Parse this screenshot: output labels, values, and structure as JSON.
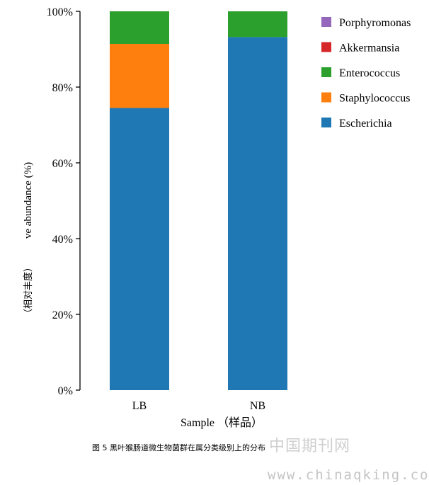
{
  "chart_data": {
    "type": "bar",
    "stacked": true,
    "categories": [
      "LB",
      "NB"
    ],
    "series": [
      {
        "name": "Escherichia",
        "color": "#1f77b4",
        "values": [
          74.5,
          93.2
        ]
      },
      {
        "name": "Staphylococcus",
        "color": "#ff7f0e",
        "values": [
          16.9,
          0.0
        ]
      },
      {
        "name": "Enterococcus",
        "color": "#2ca02c",
        "values": [
          8.6,
          6.8
        ]
      },
      {
        "name": "Akkermansia",
        "color": "#d62728",
        "values": [
          0.0,
          0.0
        ]
      },
      {
        "name": "Porphyromonas",
        "color": "#9467bd",
        "values": [
          0.0,
          0.0
        ]
      }
    ],
    "legend_order": [
      "Porphyromonas",
      "Akkermansia",
      "Enterococcus",
      "Staphylococcus",
      "Escherichia"
    ],
    "legend_placement": "top-right",
    "ylim": [
      0,
      100
    ],
    "yticks": [
      "0%",
      "20%",
      "40%",
      "60%",
      "80%",
      "100%"
    ],
    "ytick_values": [
      0,
      20,
      40,
      60,
      80,
      100
    ],
    "xlabel": "Sample （样品）",
    "ylabel_cn": "（相对丰度）",
    "ylabel_en": "ve abundance (%)",
    "grid": false
  },
  "caption": "图 5 黑叶猴肠道微生物菌群在属分类级别上的分布",
  "watermark": {
    "cn": "中国期刊网",
    "url": "www.chinaqking.com"
  }
}
